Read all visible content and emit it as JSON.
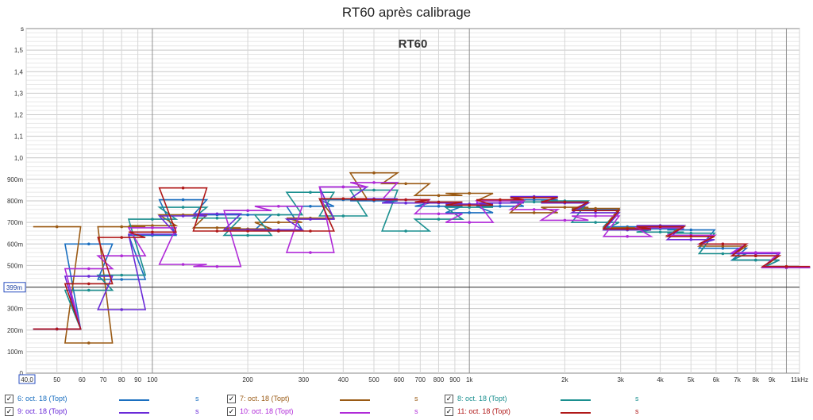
{
  "title": "RT60 après calibrage",
  "chart_data": {
    "type": "line",
    "title": "RT60 après calibrage",
    "inner_label": "RT60",
    "yunit": "s",
    "ylim": [
      0,
      1.6
    ],
    "xlim": [
      40,
      11000
    ],
    "xscale": "log",
    "grid": true,
    "x_tick_labels": [
      {
        "v": 40,
        "t": "40,0"
      },
      {
        "v": 50,
        "t": "50"
      },
      {
        "v": 60,
        "t": "60"
      },
      {
        "v": 70,
        "t": "70"
      },
      {
        "v": 80,
        "t": "80"
      },
      {
        "v": 90,
        "t": "90"
      },
      {
        "v": 100,
        "t": "100"
      },
      {
        "v": 200,
        "t": "200"
      },
      {
        "v": 300,
        "t": "300"
      },
      {
        "v": 400,
        "t": "400"
      },
      {
        "v": 500,
        "t": "500"
      },
      {
        "v": 600,
        "t": "600"
      },
      {
        "v": 700,
        "t": "700"
      },
      {
        "v": 800,
        "t": "800"
      },
      {
        "v": 900,
        "t": "900"
      },
      {
        "v": 1000,
        "t": "1k"
      },
      {
        "v": 2000,
        "t": "2k"
      },
      {
        "v": 3000,
        "t": "3k"
      },
      {
        "v": 4000,
        "t": "4k"
      },
      {
        "v": 5000,
        "t": "5k"
      },
      {
        "v": 6000,
        "t": "6k"
      },
      {
        "v": 7000,
        "t": "7k"
      },
      {
        "v": 8000,
        "t": "8k"
      },
      {
        "v": 9000,
        "t": "9k"
      },
      {
        "v": 11000,
        "t": "11kHz"
      }
    ],
    "y_tick_labels": [
      {
        "v": 0,
        "t": "0"
      },
      {
        "v": 0.1,
        "t": "100m"
      },
      {
        "v": 0.2,
        "t": "200m"
      },
      {
        "v": 0.3,
        "t": "300m"
      },
      {
        "v": 0.5,
        "t": "500m"
      },
      {
        "v": 0.6,
        "t": "600m"
      },
      {
        "v": 0.7,
        "t": "700m"
      },
      {
        "v": 0.8,
        "t": "800m"
      },
      {
        "v": 0.9,
        "t": "900m"
      },
      {
        "v": 1.0,
        "t": "1,0"
      },
      {
        "v": 1.1,
        "t": "1,1"
      },
      {
        "v": 1.2,
        "t": "1,2"
      },
      {
        "v": 1.3,
        "t": "1,3"
      },
      {
        "v": 1.4,
        "t": "1,4"
      },
      {
        "v": 1.5,
        "t": "1,5"
      }
    ],
    "cursor": {
      "value": 0.399,
      "label": "399m"
    },
    "bands": [
      50,
      63,
      80,
      100,
      125,
      160,
      200,
      250,
      315,
      400,
      500,
      630,
      800,
      1000,
      1250,
      1600,
      2000,
      2500,
      3150,
      4000,
      5000,
      6300,
      8000,
      10000
    ],
    "series": [
      {
        "name": "6: oct. 18 (Topt)",
        "color": "#1a6fc0",
        "values": [
          0.205,
          0.6,
          0.435,
          0.64,
          0.805,
          0.735,
          0.735,
          0.665,
          0.775,
          0.805,
          0.8,
          0.79,
          0.775,
          0.745,
          0.775,
          0.805,
          0.79,
          0.76,
          0.68,
          0.67,
          0.665,
          0.58,
          0.525,
          0.49
        ]
      },
      {
        "name": "7: oct. 18 (Topt)",
        "color": "#9a5a14",
        "values": [
          0.68,
          0.14,
          0.68,
          0.685,
          0.735,
          0.675,
          0.67,
          0.7,
          0.72,
          0.81,
          0.93,
          0.88,
          0.825,
          0.835,
          0.8,
          0.745,
          0.77,
          0.765,
          0.675,
          0.685,
          0.64,
          0.59,
          0.545,
          0.49
        ]
      },
      {
        "name": "8: oct. 18 (Topt)",
        "color": "#1a8f8f",
        "values": [
          0.205,
          0.385,
          0.455,
          0.715,
          0.77,
          0.72,
          0.64,
          0.735,
          0.84,
          0.73,
          0.85,
          0.66,
          0.715,
          0.77,
          0.79,
          0.795,
          0.8,
          0.7,
          0.665,
          0.655,
          0.65,
          0.555,
          0.525,
          0.49
        ]
      },
      {
        "name": "9: oct. 18 (Topt)",
        "color": "#6a2ad8",
        "values": [
          0.205,
          0.45,
          0.295,
          0.645,
          0.73,
          0.74,
          0.665,
          0.665,
          0.715,
          0.865,
          0.81,
          0.79,
          0.79,
          0.785,
          0.79,
          0.82,
          0.79,
          0.745,
          0.665,
          0.685,
          0.62,
          0.6,
          0.555,
          0.49
        ]
      },
      {
        "name": "10: oct. 18 (Topt)",
        "color": "#b02ad8",
        "values": [
          0.205,
          0.485,
          0.545,
          0.675,
          0.505,
          0.495,
          0.755,
          0.775,
          0.56,
          0.865,
          0.885,
          0.805,
          0.74,
          0.7,
          0.8,
          0.76,
          0.71,
          0.73,
          0.635,
          0.675,
          0.64,
          0.6,
          0.56,
          0.49
        ]
      },
      {
        "name": "11: oct. 18 (Topt)",
        "color": "#b01818",
        "values": [
          0.205,
          0.415,
          0.63,
          0.655,
          0.86,
          0.66,
          0.66,
          0.66,
          0.66,
          0.81,
          0.805,
          0.805,
          0.795,
          0.78,
          0.805,
          0.815,
          0.795,
          0.755,
          0.67,
          0.68,
          0.635,
          0.6,
          0.545,
          0.495
        ]
      }
    ],
    "legend_unit": "s"
  }
}
